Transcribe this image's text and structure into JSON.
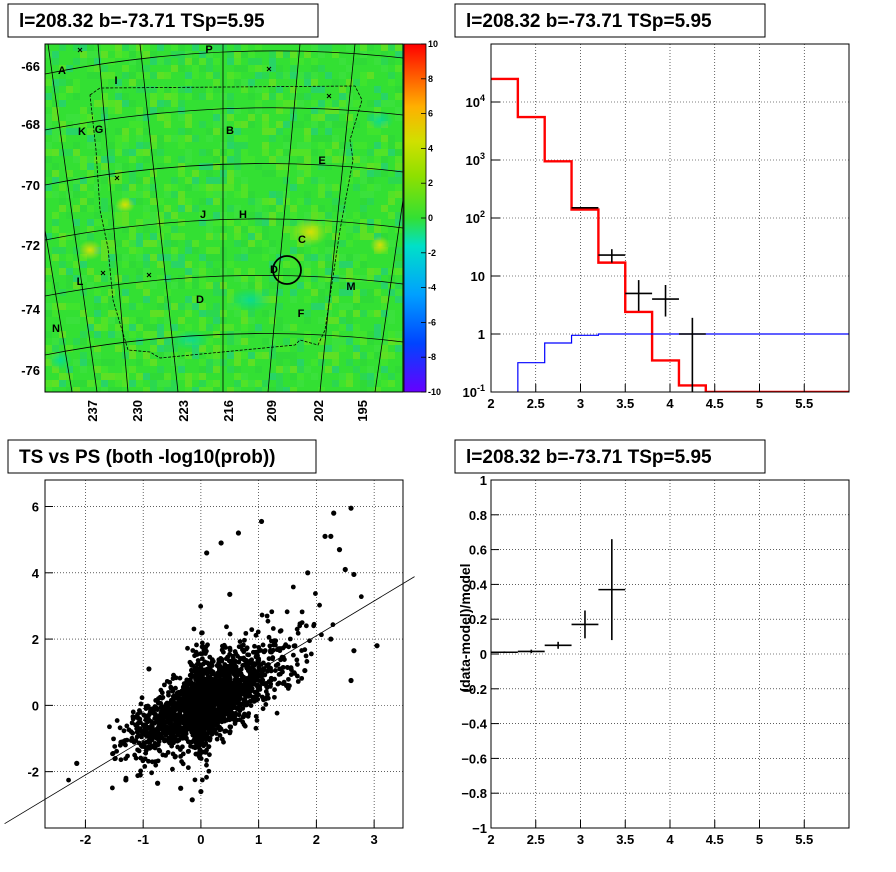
{
  "panels": {
    "map_title": "l=208.32 b=-73.71 TSp=5.95",
    "hist_title": "l=208.32 b=-73.71 TSp=5.95",
    "scatter_title": "TS vs PS (both -log10(prob))",
    "ratio_title": "l=208.32 b=-73.71 TSp=5.95"
  },
  "colors": {
    "model_line": "#ff0000",
    "background_line": "#0000ff",
    "data_points": "#000000",
    "map_base": "#33e033"
  },
  "chart_data": [
    {
      "id": "sky-map",
      "type": "heatmap",
      "title": "l=208.32 b=-73.71 TSp=5.95",
      "y_ticks": [
        "-66",
        "-68",
        "-70",
        "-72",
        "-74",
        "-76"
      ],
      "x_ticks": [
        "237",
        "230",
        "223",
        "216",
        "209",
        "202",
        "195"
      ],
      "colorbar_ticks": [
        "10",
        "8",
        "6",
        "4",
        "2",
        "0",
        "-2",
        "-4",
        "-6",
        "-8",
        "-10"
      ],
      "colorbar_range": [
        -10,
        10
      ],
      "region_labels": [
        "A",
        "P",
        "I",
        "K",
        "G",
        "B",
        "E",
        "J",
        "H",
        "C",
        "D",
        "L",
        "M",
        "D",
        "F",
        "N"
      ]
    },
    {
      "id": "ts-histogram",
      "type": "line",
      "title": "l=208.32 b=-73.71 TSp=5.95",
      "x_range": [
        2,
        6
      ],
      "y_scale": "log",
      "y_range": [
        0.1,
        100000
      ],
      "x_ticks": [
        "2",
        "2.5",
        "3",
        "3.5",
        "4",
        "4.5",
        "5",
        "5.5"
      ],
      "y_ticks": [
        "10^4",
        "10^3",
        "10^2",
        "10",
        "1",
        "10^-1"
      ],
      "bin_edges": [
        2,
        2.3,
        2.6,
        2.9,
        3.2,
        3.5,
        3.8,
        4.1,
        4.4,
        6
      ],
      "series": [
        {
          "style": "step",
          "color": "red",
          "values": [
            25000,
            5500,
            950,
            140,
            17,
            2.4,
            0.35,
            0.13,
            0.1
          ]
        },
        {
          "style": "step",
          "color": "blue",
          "values": [
            0.04,
            0.32,
            0.7,
            0.95,
            1,
            1,
            1,
            1,
            1
          ]
        },
        {
          "style": "errorbar",
          "points": [
            {
              "x": 3.05,
              "y": 150,
              "xerr": 0.15
            },
            {
              "x": 3.35,
              "y": 23,
              "xerr": 0.15,
              "yerr": 6
            },
            {
              "x": 3.65,
              "y": 5,
              "xerr": 0.15,
              "yerr_lo": 2.5,
              "yerr_hi": 3.5
            },
            {
              "x": 3.95,
              "y": 4,
              "xerr": 0.15,
              "yerr_lo": 2,
              "yerr_hi": 3
            },
            {
              "x": 4.25,
              "y": 1,
              "xerr": 0.15,
              "yerr_lo": 0.95,
              "yerr_hi": 0.9
            }
          ]
        }
      ]
    },
    {
      "id": "ts-vs-ps",
      "type": "scatter",
      "title": "TS vs PS (both -log10(prob))",
      "x_range": [
        -2.7,
        3.5
      ],
      "y_range": [
        -3.7,
        6.8
      ],
      "x_ticks": [
        "-2",
        "-1",
        "0",
        "1",
        "2",
        "3"
      ],
      "y_ticks": [
        "-2",
        "0",
        "2",
        "4",
        "6"
      ],
      "reference_line": {
        "slope": 1.05,
        "intercept": 0.0
      },
      "outliers": [
        {
          "x": 2.6,
          "y": 5.95
        },
        {
          "x": 2.3,
          "y": 5.8
        },
        {
          "x": 1.05,
          "y": 5.55
        },
        {
          "x": 0.65,
          "y": 5.2
        },
        {
          "x": 0.35,
          "y": 4.9
        },
        {
          "x": 2.15,
          "y": 5.1
        },
        {
          "x": 2.25,
          "y": 5.1
        },
        {
          "x": 2.4,
          "y": 4.7
        },
        {
          "x": 2.5,
          "y": 4.1
        },
        {
          "x": 2.65,
          "y": 3.95
        },
        {
          "x": 3.05,
          "y": 1.8
        },
        {
          "x": 2.65,
          "y": 1.65
        },
        {
          "x": 2.6,
          "y": 0.75
        },
        {
          "x": -2.15,
          "y": -1.75
        },
        {
          "x": -1.3,
          "y": -2.25
        },
        {
          "x": -1.05,
          "y": -2.1
        },
        {
          "x": -0.75,
          "y": -2.35
        },
        {
          "x": -0.35,
          "y": -2.5
        },
        {
          "x": -0.15,
          "y": -2.85
        },
        {
          "x": 0.0,
          "y": -2.6
        },
        {
          "x": 2.25,
          "y": 2.0
        },
        {
          "x": 1.5,
          "y": 0.6
        },
        {
          "x": 1.8,
          "y": 1.05
        },
        {
          "x": -0.9,
          "y": 1.1
        },
        {
          "x": 0.1,
          "y": 4.6
        },
        {
          "x": 1.85,
          "y": 4.0
        },
        {
          "x": 0.5,
          "y": 3.35
        }
      ]
    },
    {
      "id": "ratio",
      "type": "scatter",
      "title": "l=208.32 b=-73.71 TSp=5.95",
      "ylabel": "(data-model)/model",
      "x_range": [
        2,
        6
      ],
      "y_range": [
        -1,
        1
      ],
      "x_ticks": [
        "2",
        "2.5",
        "3",
        "3.5",
        "4",
        "4.5",
        "5",
        "5.5"
      ],
      "y_ticks": [
        "1",
        "0.8",
        "0.6",
        "0.4",
        "0.2",
        "0",
        "−0.2",
        "−0.4",
        "−0.6",
        "−0.8",
        "−1"
      ],
      "points": [
        {
          "x": 2.15,
          "y": 0.01,
          "xerr": 0.15,
          "yerr": 0.005
        },
        {
          "x": 2.45,
          "y": 0.015,
          "xerr": 0.15,
          "yerr": 0.01
        },
        {
          "x": 2.75,
          "y": 0.05,
          "xerr": 0.15,
          "yerr": 0.02
        },
        {
          "x": 3.05,
          "y": 0.17,
          "xerr": 0.15,
          "yerr": 0.08
        },
        {
          "x": 3.35,
          "y": 0.37,
          "xerr": 0.15,
          "yerr": 0.29
        }
      ]
    }
  ]
}
